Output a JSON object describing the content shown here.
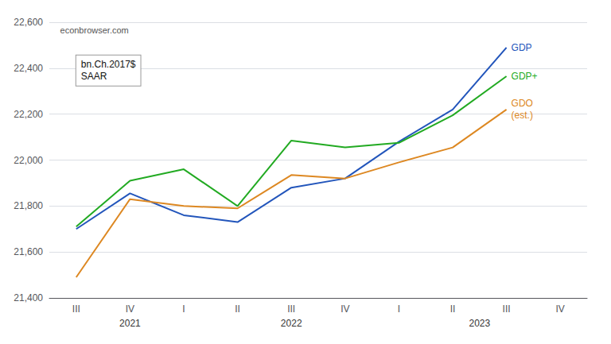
{
  "chart_data": {
    "type": "line",
    "categories": [
      "III",
      "IV",
      "I",
      "II",
      "III",
      "IV",
      "I",
      "II",
      "III",
      "IV"
    ],
    "series": [
      {
        "name": "GDP",
        "color": "#2255bb",
        "values": [
          21700,
          21855,
          21760,
          21730,
          21880,
          21920,
          22080,
          22220,
          22490,
          null
        ]
      },
      {
        "name": "GDP+",
        "color": "#22aa22",
        "values": [
          21710,
          21910,
          21960,
          21800,
          22085,
          22055,
          22075,
          22195,
          22365,
          null
        ]
      },
      {
        "name": "GDO\n(est.)",
        "color": "#dd8822",
        "values": [
          21490,
          21830,
          21800,
          21790,
          21935,
          21920,
          21990,
          22055,
          22220,
          null
        ]
      }
    ],
    "ylim": [
      21400,
      22600
    ],
    "yticks": [
      {
        "value": 21400,
        "label": "21,400"
      },
      {
        "value": 21600,
        "label": "21,600"
      },
      {
        "value": 21800,
        "label": "21,800"
      },
      {
        "value": 22000,
        "label": "22,000"
      },
      {
        "value": 22200,
        "label": "22,200"
      },
      {
        "value": 22400,
        "label": "22,400"
      },
      {
        "value": 22600,
        "label": "22,600"
      }
    ],
    "grid": true,
    "annotations": [
      {
        "text": "econbrowser.com"
      },
      {
        "text": "bn.Ch.2017$\nSAAR"
      },
      {
        "text": "2021",
        "x": 1
      },
      {
        "text": "2022",
        "x": 4
      },
      {
        "text": "2023",
        "x": 7.5
      }
    ]
  }
}
